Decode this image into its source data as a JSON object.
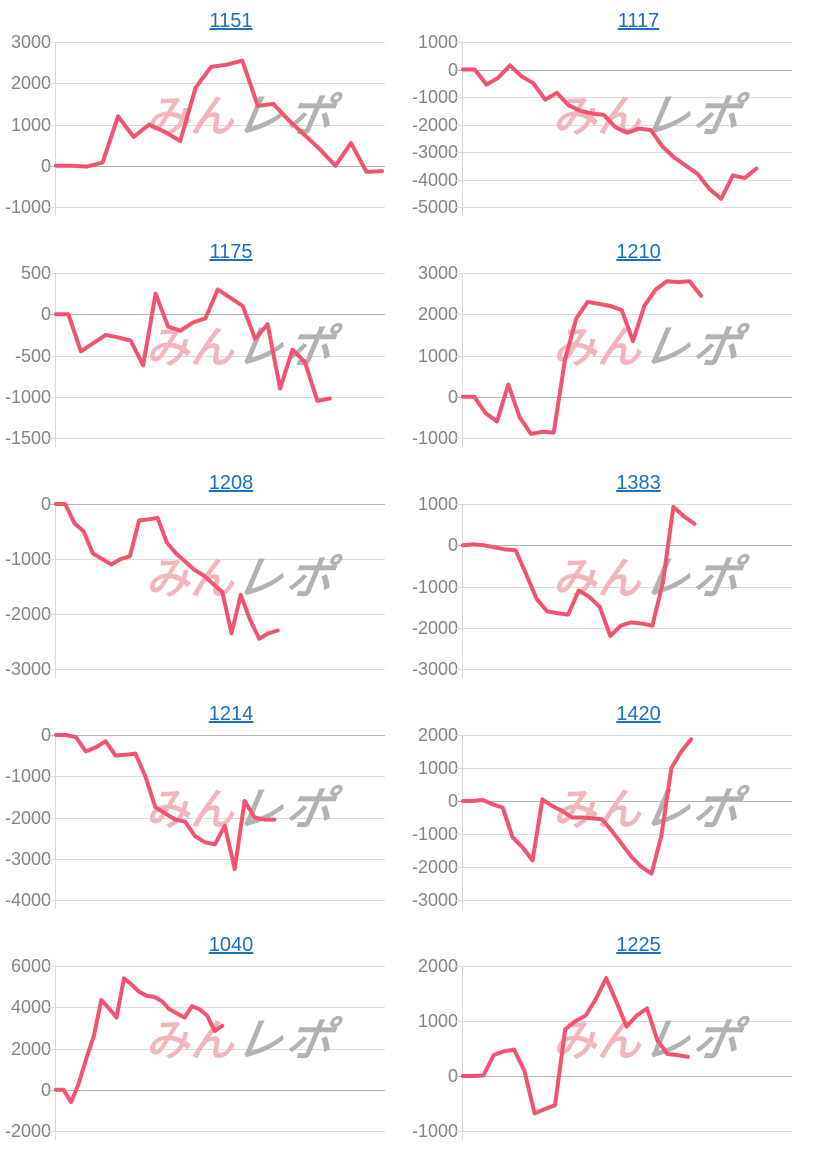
{
  "colors": {
    "line": "#f3536f",
    "grid": "#dcdcdc",
    "zero_line": "#b5b5b5",
    "axis": "#d9d9d9",
    "tick_label": "#858585",
    "title_link": "#1d6fc0",
    "watermark_pink": "#f1b6bc",
    "watermark_gray": "#b2b2b2"
  },
  "watermark": {
    "pink_text": "みん",
    "gray_text": "レポ"
  },
  "chart_data": [
    {
      "type": "line",
      "title": "1151",
      "ylim": [
        -1000,
        3000
      ],
      "yticks": [
        3000,
        2000,
        1000,
        0,
        -1000
      ],
      "x_extent": 1.0,
      "values": [
        0,
        0,
        -20,
        80,
        1200,
        700,
        1000,
        820,
        600,
        1900,
        2400,
        2450,
        2550,
        1450,
        1500,
        1100,
        750,
        400,
        0,
        550,
        -150,
        -130
      ]
    },
    {
      "type": "line",
      "title": "1117",
      "ylim": [
        -5000,
        1000
      ],
      "yticks": [
        1000,
        0,
        -1000,
        -2000,
        -3000,
        -4000,
        -5000
      ],
      "x_extent": 0.9,
      "values": [
        0,
        0,
        -550,
        -300,
        150,
        -250,
        -500,
        -1100,
        -850,
        -1300,
        -1500,
        -1600,
        -1650,
        -2100,
        -2300,
        -2150,
        -2200,
        -2800,
        -3200,
        -3500,
        -3800,
        -4350,
        -4700,
        -3850,
        -3950,
        -3600
      ]
    },
    {
      "type": "line",
      "title": "1175",
      "ylim": [
        -1500,
        500
      ],
      "yticks": [
        500,
        0,
        -500,
        -1000,
        -1500
      ],
      "x_extent": 0.84,
      "values": [
        0,
        0,
        -450,
        -350,
        -250,
        -280,
        -320,
        -620,
        250,
        -150,
        -200,
        -100,
        -50,
        300,
        200,
        100,
        -300,
        -120,
        -900,
        -430,
        -580,
        -1050,
        -1020
      ]
    },
    {
      "type": "line",
      "title": "1210",
      "ylim": [
        -1000,
        3000
      ],
      "yticks": [
        3000,
        2000,
        1000,
        0,
        -1000
      ],
      "x_extent": 0.73,
      "values": [
        0,
        0,
        -400,
        -600,
        300,
        -500,
        -900,
        -850,
        -870,
        900,
        1900,
        2300,
        2250,
        2200,
        2100,
        1350,
        2200,
        2600,
        2800,
        2780,
        2800,
        2450
      ]
    },
    {
      "type": "line",
      "title": "1208",
      "ylim": [
        -3000,
        0
      ],
      "yticks": [
        0,
        -1000,
        -2000,
        -3000
      ],
      "x_extent": 0.68,
      "values": [
        0,
        0,
        -350,
        -500,
        -900,
        -1000,
        -1100,
        -1000,
        -950,
        -300,
        -280,
        -250,
        -700,
        -900,
        -1050,
        -1200,
        -1300,
        -1450,
        -1600,
        -2350,
        -1650,
        -2100,
        -2450,
        -2350,
        -2300
      ]
    },
    {
      "type": "line",
      "title": "1383",
      "ylim": [
        -3000,
        1000
      ],
      "yticks": [
        1000,
        0,
        -1000,
        -2000,
        -3000
      ],
      "x_extent": 0.71,
      "values": [
        0,
        20,
        0,
        -50,
        -100,
        -120,
        -700,
        -1300,
        -1600,
        -1650,
        -1680,
        -1100,
        -1250,
        -1500,
        -2200,
        -1950,
        -1870,
        -1900,
        -1950,
        -900,
        930,
        700,
        520
      ]
    },
    {
      "type": "line",
      "title": "1214",
      "ylim": [
        -4000,
        0
      ],
      "yticks": [
        0,
        -1000,
        -2000,
        -3000,
        -4000
      ],
      "x_extent": 0.67,
      "values": [
        0,
        0,
        -50,
        -400,
        -300,
        -150,
        -500,
        -480,
        -450,
        -1000,
        -1750,
        -1900,
        -2050,
        -2100,
        -2450,
        -2600,
        -2650,
        -2200,
        -3250,
        -1600,
        -2000,
        -2050,
        -2050
      ]
    },
    {
      "type": "line",
      "title": "1420",
      "ylim": [
        -3000,
        2000
      ],
      "yticks": [
        2000,
        1000,
        0,
        -1000,
        -2000,
        -3000
      ],
      "x_extent": 0.7,
      "values": [
        0,
        0,
        30,
        -100,
        -200,
        -1100,
        -1400,
        -1800,
        50,
        -150,
        -300,
        -500,
        -500,
        -520,
        -550,
        -900,
        -1300,
        -1700,
        -2000,
        -2200,
        -1050,
        1000,
        1500,
        1870
      ]
    },
    {
      "type": "line",
      "title": "1040",
      "ylim": [
        -2000,
        6000
      ],
      "yticks": [
        6000,
        4000,
        2000,
        0,
        -2000
      ],
      "x_extent": 0.51,
      "values": [
        0,
        0,
        -600,
        300,
        1500,
        2600,
        4350,
        3950,
        3500,
        5400,
        5100,
        4750,
        4550,
        4500,
        4300,
        3900,
        3700,
        3500,
        4050,
        3900,
        3600,
        2850,
        3100
      ]
    },
    {
      "type": "line",
      "title": "1225",
      "ylim": [
        -1000,
        2000
      ],
      "yticks": [
        2000,
        1000,
        0,
        -1000
      ],
      "x_extent": 0.69,
      "values": [
        0,
        0,
        10,
        380,
        450,
        480,
        100,
        -680,
        -600,
        -530,
        850,
        1000,
        1100,
        1400,
        1780,
        1350,
        900,
        1100,
        1230,
        650,
        400,
        380,
        350
      ]
    }
  ]
}
